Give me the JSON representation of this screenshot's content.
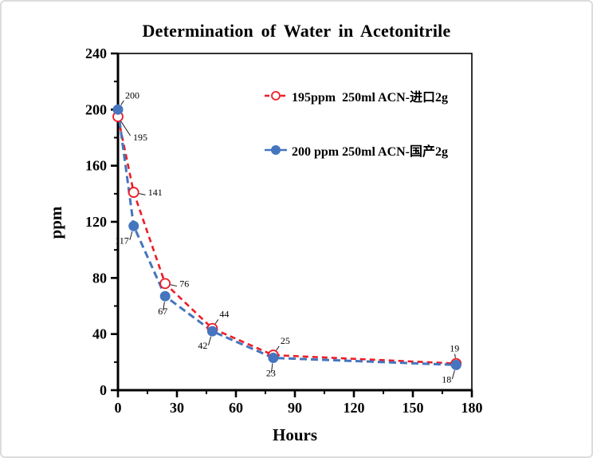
{
  "chart_data": {
    "type": "line",
    "title": "Determination of Water in Acetonitrile",
    "xlabel": "Hours",
    "ylabel": "ppm",
    "xlim": [
      0,
      180
    ],
    "ylim": [
      0,
      240
    ],
    "x_major_ticks": [
      0,
      30,
      60,
      90,
      120,
      150,
      180
    ],
    "x_minor_step": 15,
    "y_major_ticks": [
      0,
      40,
      80,
      120,
      160,
      200,
      240
    ],
    "y_minor_step": 20,
    "grid": false,
    "legend_position": "inside-upper-right",
    "axis_color": "#000000",
    "series": [
      {
        "name": "195ppm  250ml ACN-进口2g",
        "color": "#EE1C25",
        "marker": "open-circle",
        "line_style": "dashed",
        "x": [
          0,
          8,
          24,
          48,
          79,
          172
        ],
        "values": [
          195,
          141,
          76,
          44,
          25,
          19
        ],
        "label_placements": [
          "below-right",
          "right",
          "right",
          "above-right",
          "above-right",
          "above"
        ]
      },
      {
        "name": "200 ppm 250ml ACN-国产2g",
        "color": "#4575BE",
        "marker": "filled-circle",
        "line_style": "dashed",
        "x": [
          0,
          8,
          24,
          48,
          79,
          172
        ],
        "values": [
          200,
          117,
          67,
          42,
          23,
          18
        ],
        "label_placements": [
          "above-right",
          "below-left",
          "below",
          "below-left",
          "below",
          "below-left"
        ]
      }
    ]
  }
}
